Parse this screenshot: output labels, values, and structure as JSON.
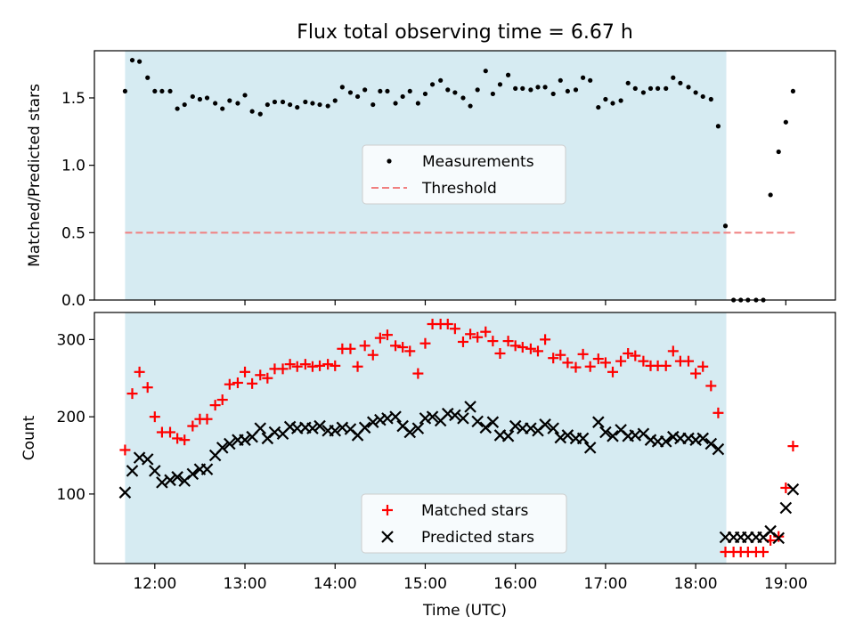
{
  "title": "Flux total observing time = 6.67 h",
  "chart_data": [
    {
      "type": "scatter",
      "ylabel": "Matched/Predicted stars",
      "xlim": [
        11.33,
        19.55
      ],
      "ylim": [
        0,
        1.85
      ],
      "yticks": [
        0.0,
        0.5,
        1.0,
        1.5
      ],
      "ytick_labels": [
        "0.0",
        "0.5",
        "1.0",
        "1.5"
      ],
      "observing_window": [
        11.67,
        18.34
      ],
      "observing_window_color": "#add8e6",
      "legend_position": "center",
      "threshold": {
        "name": "Threshold",
        "y": 0.5,
        "x": [
          11.67,
          19.1
        ],
        "color": "#f08080"
      },
      "series": [
        {
          "name": "Measurements",
          "marker": "dot",
          "color": "#000000",
          "x": [
            11.67,
            11.75,
            11.83,
            11.92,
            12.0,
            12.08,
            12.17,
            12.25,
            12.33,
            12.42,
            12.5,
            12.58,
            12.67,
            12.75,
            12.83,
            12.92,
            13.0,
            13.08,
            13.17,
            13.25,
            13.33,
            13.42,
            13.5,
            13.58,
            13.67,
            13.75,
            13.83,
            13.92,
            14.0,
            14.08,
            14.17,
            14.25,
            14.33,
            14.42,
            14.5,
            14.58,
            14.67,
            14.75,
            14.83,
            14.92,
            15.0,
            15.08,
            15.17,
            15.25,
            15.33,
            15.42,
            15.5,
            15.58,
            15.67,
            15.75,
            15.83,
            15.92,
            16.0,
            16.08,
            16.17,
            16.25,
            16.33,
            16.42,
            16.5,
            16.58,
            16.67,
            16.75,
            16.83,
            16.92,
            17.0,
            17.08,
            17.17,
            17.25,
            17.33,
            17.42,
            17.5,
            17.58,
            17.67,
            17.75,
            17.83,
            17.92,
            18.0,
            18.08,
            18.17,
            18.25,
            18.33,
            18.42,
            18.5,
            18.58,
            18.67,
            18.75,
            18.83,
            18.92,
            19.0,
            19.08
          ],
          "y": [
            1.55,
            1.78,
            1.77,
            1.65,
            1.55,
            1.55,
            1.55,
            1.42,
            1.45,
            1.51,
            1.49,
            1.5,
            1.46,
            1.42,
            1.48,
            1.46,
            1.52,
            1.4,
            1.38,
            1.45,
            1.47,
            1.47,
            1.45,
            1.43,
            1.47,
            1.46,
            1.45,
            1.44,
            1.48,
            1.58,
            1.54,
            1.51,
            1.56,
            1.45,
            1.55,
            1.55,
            1.46,
            1.51,
            1.55,
            1.46,
            1.53,
            1.6,
            1.63,
            1.56,
            1.54,
            1.5,
            1.44,
            1.56,
            1.7,
            1.53,
            1.6,
            1.67,
            1.57,
            1.57,
            1.56,
            1.58,
            1.58,
            1.53,
            1.63,
            1.55,
            1.56,
            1.65,
            1.63,
            1.43,
            1.49,
            1.46,
            1.48,
            1.61,
            1.57,
            1.54,
            1.57,
            1.57,
            1.57,
            1.65,
            1.61,
            1.58,
            1.54,
            1.51,
            1.49,
            1.29,
            0.55,
            0.0,
            0.0,
            0.0,
            0.0,
            0.0,
            0.78,
            1.1,
            1.32,
            1.55
          ]
        }
      ]
    },
    {
      "type": "scatter",
      "xlabel": "Time (UTC)",
      "ylabel": "Count",
      "xlim": [
        11.33,
        19.55
      ],
      "ylim": [
        10,
        335
      ],
      "xticks": [
        12,
        13,
        14,
        15,
        16,
        17,
        18,
        19
      ],
      "xtick_labels": [
        "12:00",
        "13:00",
        "14:00",
        "15:00",
        "16:00",
        "17:00",
        "18:00",
        "19:00"
      ],
      "yticks": [
        100,
        200,
        300
      ],
      "ytick_labels": [
        "100",
        "200",
        "300"
      ],
      "observing_window": [
        11.67,
        18.34
      ],
      "observing_window_color": "#add8e6",
      "legend_position": "lower center",
      "series": [
        {
          "name": "Matched stars",
          "marker": "plus",
          "color": "#ff0000",
          "x": [
            11.67,
            11.75,
            11.83,
            11.92,
            12.0,
            12.08,
            12.17,
            12.25,
            12.33,
            12.42,
            12.5,
            12.58,
            12.67,
            12.75,
            12.83,
            12.92,
            13.0,
            13.08,
            13.17,
            13.25,
            13.33,
            13.42,
            13.5,
            13.58,
            13.67,
            13.75,
            13.83,
            13.92,
            14.0,
            14.08,
            14.17,
            14.25,
            14.33,
            14.42,
            14.5,
            14.58,
            14.67,
            14.75,
            14.83,
            14.92,
            15.0,
            15.08,
            15.17,
            15.25,
            15.33,
            15.42,
            15.5,
            15.58,
            15.67,
            15.75,
            15.83,
            15.92,
            16.0,
            16.08,
            16.17,
            16.25,
            16.33,
            16.42,
            16.5,
            16.58,
            16.67,
            16.75,
            16.83,
            16.92,
            17.0,
            17.08,
            17.17,
            17.25,
            17.33,
            17.42,
            17.5,
            17.58,
            17.67,
            17.75,
            17.83,
            17.92,
            18.0,
            18.08,
            18.17,
            18.25,
            18.33,
            18.42,
            18.5,
            18.58,
            18.67,
            18.75,
            18.83,
            18.92,
            19.0,
            19.08
          ],
          "y": [
            157,
            230,
            258,
            238,
            200,
            180,
            180,
            172,
            170,
            188,
            197,
            197,
            215,
            222,
            242,
            244,
            258,
            243,
            254,
            250,
            262,
            262,
            268,
            265,
            268,
            265,
            266,
            268,
            266,
            288,
            288,
            265,
            292,
            280,
            302,
            306,
            292,
            290,
            285,
            256,
            295,
            320,
            320,
            320,
            314,
            297,
            307,
            303,
            310,
            298,
            282,
            298,
            292,
            290,
            288,
            285,
            300,
            276,
            280,
            270,
            264,
            281,
            265,
            275,
            270,
            258,
            272,
            282,
            279,
            272,
            266,
            266,
            266,
            285,
            272,
            272,
            256,
            265,
            240,
            205,
            25,
            25,
            25,
            25,
            25,
            25,
            40,
            45,
            108,
            162
          ]
        },
        {
          "name": "Predicted stars",
          "marker": "x",
          "color": "#000000",
          "x": [
            11.67,
            11.75,
            11.83,
            11.92,
            12.0,
            12.08,
            12.17,
            12.25,
            12.33,
            12.42,
            12.5,
            12.58,
            12.67,
            12.75,
            12.83,
            12.92,
            13.0,
            13.08,
            13.17,
            13.25,
            13.33,
            13.42,
            13.5,
            13.58,
            13.67,
            13.75,
            13.83,
            13.92,
            14.0,
            14.08,
            14.17,
            14.25,
            14.33,
            14.42,
            14.5,
            14.58,
            14.67,
            14.75,
            14.83,
            14.92,
            15.0,
            15.08,
            15.17,
            15.25,
            15.33,
            15.42,
            15.5,
            15.58,
            15.67,
            15.75,
            15.83,
            15.92,
            16.0,
            16.08,
            16.17,
            16.25,
            16.33,
            16.42,
            16.5,
            16.58,
            16.67,
            16.75,
            16.83,
            16.92,
            17.0,
            17.08,
            17.17,
            17.25,
            17.33,
            17.42,
            17.5,
            17.58,
            17.67,
            17.75,
            17.83,
            17.92,
            18.0,
            18.08,
            18.17,
            18.25,
            18.33,
            18.42,
            18.5,
            18.58,
            18.67,
            18.75,
            18.83,
            18.92,
            19.0,
            19.08
          ],
          "y": [
            102,
            130,
            147,
            145,
            130,
            115,
            118,
            122,
            117,
            126,
            132,
            132,
            150,
            160,
            165,
            170,
            170,
            174,
            185,
            172,
            180,
            178,
            187,
            185,
            186,
            185,
            188,
            182,
            182,
            186,
            184,
            176,
            186,
            193,
            196,
            198,
            200,
            188,
            180,
            185,
            198,
            200,
            195,
            204,
            202,
            198,
            213,
            194,
            186,
            193,
            176,
            175,
            188,
            185,
            185,
            182,
            190,
            185,
            173,
            176,
            172,
            172,
            160,
            193,
            180,
            175,
            183,
            175,
            176,
            178,
            170,
            168,
            168,
            174,
            172,
            172,
            170,
            172,
            165,
            158,
            44,
            44,
            44,
            44,
            44,
            44,
            52,
            43,
            82,
            106
          ]
        }
      ]
    }
  ]
}
